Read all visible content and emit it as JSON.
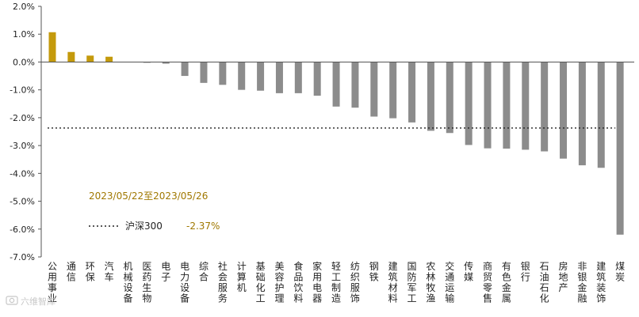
{
  "chart_data": {
    "type": "bar",
    "categories": [
      "公用事业",
      "通信",
      "环保",
      "汽车",
      "机械设备",
      "医药生物",
      "电子",
      "电力设备",
      "综合",
      "社会服务",
      "计算机",
      "基础化工",
      "美容护理",
      "食品饮料",
      "家用电器",
      "轻工制造",
      "纺织服饰",
      "钢铁",
      "建筑材料",
      "国防军工",
      "农林牧渔",
      "交通运输",
      "传媒",
      "商贸零售",
      "有色金属",
      "银行",
      "石油石化",
      "房地产",
      "非银金融",
      "建筑装饰",
      "煤炭"
    ],
    "values": [
      1.07,
      0.36,
      0.23,
      0.19,
      0.0,
      -0.01,
      -0.06,
      -0.5,
      -0.75,
      -0.82,
      -1.0,
      -1.03,
      -1.12,
      -1.12,
      -1.21,
      -1.6,
      -1.64,
      -1.96,
      -2.02,
      -2.17,
      -2.47,
      -2.55,
      -2.98,
      -3.1,
      -3.11,
      -3.15,
      -3.21,
      -3.47,
      -3.71,
      -3.8,
      -6.2
    ],
    "ylim": [
      -7.0,
      2.0
    ],
    "yticks": [
      "2.0%",
      "1.0%",
      "0.0%",
      "-1.0%",
      "-2.0%",
      "-3.0%",
      "-4.0%",
      "-5.0%",
      "-6.0%",
      "-7.0%"
    ],
    "grid": false,
    "colors": {
      "positive": "#c49a0c",
      "negative": "#8c8c8c"
    },
    "reference_line": {
      "name": "沪深300",
      "value": -2.37,
      "value_label": "-2.37%",
      "style": "dotted"
    },
    "annotation": "2023/05/22至2023/05/26"
  },
  "watermark": {
    "icon": "camera-icon",
    "text": "六维智库"
  }
}
